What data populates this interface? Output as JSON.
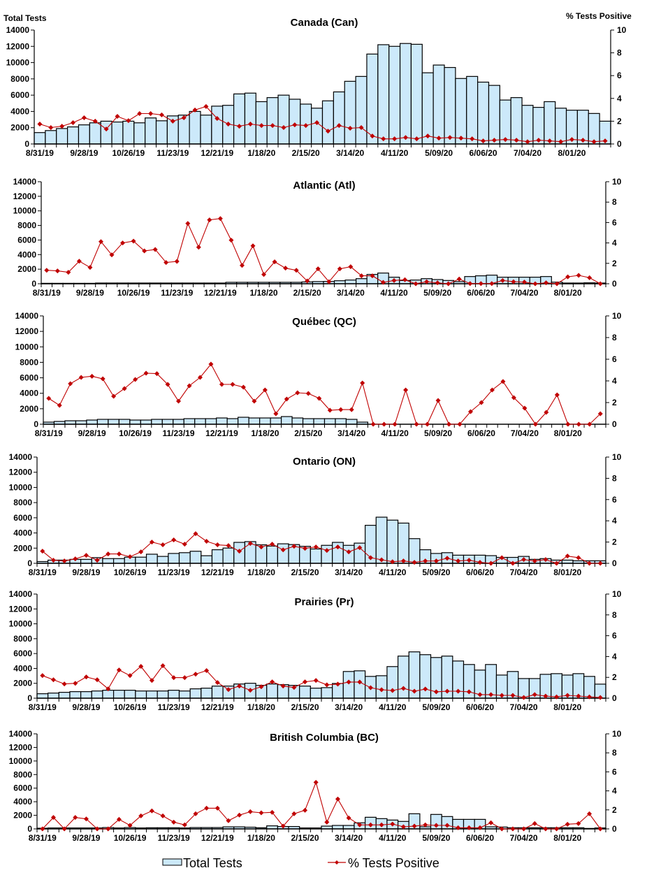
{
  "chart_data": [
    {
      "type": "bar+line",
      "title": "Canada (Can)",
      "ylabel_left": "Total Tests",
      "ylabel_right": "% Tests Positive",
      "ylim_left": [
        0,
        14000
      ],
      "ylim_right": [
        0,
        10
      ],
      "total_tests": [
        1400,
        1650,
        1900,
        2100,
        2350,
        2600,
        2800,
        2700,
        2800,
        2600,
        3200,
        2850,
        3450,
        3550,
        4000,
        3550,
        4650,
        4750,
        6150,
        6250,
        5200,
        5700,
        6000,
        5500,
        4900,
        4400,
        5300,
        6400,
        7700,
        8300,
        11050,
        12200,
        12000,
        12350,
        12250,
        8750,
        9700,
        9400,
        8050,
        8300,
        7600,
        7200,
        5400,
        5700,
        4750,
        4500,
        5200,
        4400,
        4150,
        4150,
        3750,
        2800
      ],
      "pct_positive": [
        1.75,
        1.44,
        1.56,
        1.87,
        2.3,
        2.0,
        1.31,
        2.42,
        2.05,
        2.67,
        2.67,
        2.55,
        2.0,
        2.3,
        2.98,
        3.29,
        2.24,
        1.75,
        1.56,
        1.75,
        1.62,
        1.62,
        1.44,
        1.68,
        1.62,
        1.87,
        1.13,
        1.62,
        1.38,
        1.44,
        0.7,
        0.45,
        0.45,
        0.57,
        0.45,
        0.7,
        0.51,
        0.57,
        0.51,
        0.45,
        0.27,
        0.33,
        0.39,
        0.33,
        0.2,
        0.33,
        0.27,
        0.2,
        0.39,
        0.33,
        0.2,
        0.27
      ]
    },
    {
      "type": "bar+line",
      "title": "Atlantic (Atl)",
      "ylim_left": [
        0,
        14000
      ],
      "ylim_right": [
        0,
        10
      ],
      "total_tests": [
        60,
        60,
        60,
        60,
        60,
        100,
        100,
        100,
        100,
        100,
        100,
        100,
        100,
        100,
        100,
        100,
        100,
        200,
        200,
        200,
        200,
        200,
        200,
        200,
        250,
        300,
        320,
        415,
        510,
        700,
        1280,
        1470,
        900,
        450,
        510,
        700,
        575,
        450,
        290,
        990,
        1090,
        1180,
        900,
        900,
        900,
        900,
        990,
        220,
        100,
        100,
        130,
        100
      ],
      "pct_positive": [
        1.32,
        1.26,
        1.12,
        2.21,
        1.6,
        4.13,
        2.83,
        4.0,
        4.18,
        3.22,
        3.36,
        2.08,
        2.19,
        5.91,
        3.58,
        6.26,
        6.39,
        4.27,
        1.8,
        3.72,
        0.91,
        2.15,
        1.53,
        1.32,
        0.27,
        1.46,
        0.2,
        1.46,
        1.67,
        0.78,
        0.78,
        0.14,
        0.32,
        0.39,
        0,
        0.2,
        0.09,
        0,
        0.46,
        0.02,
        0.02,
        0.02,
        0.32,
        0.2,
        0.16,
        0,
        0.09,
        0,
        0.68,
        0.82,
        0.59,
        0
      ]
    },
    {
      "type": "bar+line",
      "title": "Québec (QC)",
      "ylim_left": [
        0,
        14000
      ],
      "ylim_right": [
        0,
        10
      ],
      "total_tests": [
        270,
        360,
        450,
        450,
        540,
        630,
        630,
        630,
        540,
        540,
        630,
        630,
        630,
        720,
        720,
        720,
        810,
        720,
        900,
        810,
        810,
        810,
        990,
        810,
        720,
        720,
        720,
        720,
        630,
        270,
        0,
        0,
        0,
        0,
        0,
        0,
        0,
        0,
        0,
        0,
        0,
        0,
        0,
        0,
        0,
        0,
        0,
        0,
        0,
        0,
        0,
        0
      ],
      "pct_positive": [
        2.39,
        1.74,
        3.74,
        4.32,
        4.43,
        4.19,
        2.58,
        3.29,
        4.13,
        4.71,
        4.67,
        3.68,
        2.13,
        3.55,
        4.32,
        5.55,
        3.68,
        3.68,
        3.42,
        2.13,
        3.16,
        0.97,
        2.32,
        2.9,
        2.84,
        2.39,
        1.29,
        1.35,
        1.35,
        3.81,
        0,
        0,
        0,
        3.16,
        0,
        0,
        2.19,
        0,
        0,
        1.16,
        2.0,
        3.16,
        3.94,
        2.45,
        1.48,
        0,
        1.1,
        2.71,
        0,
        0,
        0,
        0.97
      ]
    },
    {
      "type": "bar+line",
      "title": "Ontario (ON)",
      "ylim_left": [
        0,
        14000
      ],
      "ylim_right": [
        0,
        10
      ],
      "total_tests": [
        230,
        420,
        420,
        520,
        520,
        750,
        620,
        620,
        810,
        810,
        1200,
        910,
        1300,
        1400,
        1590,
        1000,
        1790,
        2010,
        2760,
        2860,
        2440,
        2270,
        2570,
        2470,
        2240,
        1890,
        2370,
        2760,
        2370,
        2660,
        5010,
        6080,
        5690,
        5300,
        3250,
        1790,
        1300,
        1400,
        1070,
        1070,
        1070,
        1010,
        780,
        780,
        910,
        520,
        620,
        420,
        420,
        330,
        330,
        330
      ],
      "pct_positive": [
        1.14,
        0.29,
        0.22,
        0.42,
        0.75,
        0.29,
        0.88,
        0.88,
        0.62,
        1.08,
        2.0,
        1.74,
        2.2,
        1.8,
        2.79,
        2.07,
        1.74,
        1.67,
        1.14,
        1.87,
        1.54,
        1.8,
        1.27,
        1.6,
        1.41,
        1.54,
        1.21,
        1.54,
        1.08,
        1.47,
        0.53,
        0.33,
        0.15,
        0.22,
        0.09,
        0.22,
        0.22,
        0.48,
        0.22,
        0.29,
        0.09,
        0,
        0.53,
        0,
        0.35,
        0.22,
        0.35,
        0,
        0.68,
        0.53,
        0,
        0
      ]
    },
    {
      "type": "bar+line",
      "title": "Prairies (Pr)",
      "ylim_left": [
        0,
        14000
      ],
      "ylim_right": [
        0,
        10
      ],
      "total_tests": [
        600,
        690,
        790,
        880,
        880,
        970,
        1070,
        1070,
        1070,
        970,
        970,
        970,
        1070,
        970,
        1260,
        1350,
        1630,
        1630,
        1910,
        2010,
        1730,
        1910,
        1820,
        1730,
        1630,
        1350,
        1420,
        1980,
        3590,
        3680,
        2930,
        3020,
        4250,
        5660,
        6230,
        5850,
        5470,
        5660,
        5000,
        4530,
        3780,
        4530,
        3110,
        3590,
        2640,
        2640,
        3210,
        3300,
        3110,
        3300,
        2930,
        1890
      ],
      "pct_positive": [
        2.17,
        1.77,
        1.37,
        1.43,
        2.04,
        1.77,
        0.9,
        2.71,
        2.17,
        3.05,
        1.7,
        3.12,
        1.97,
        1.97,
        2.31,
        2.65,
        1.5,
        0.83,
        1.17,
        0.76,
        1.1,
        1.57,
        1.17,
        1.03,
        1.57,
        1.7,
        1.28,
        1.35,
        1.55,
        1.55,
        1.01,
        0.81,
        0.74,
        0.94,
        0.67,
        0.88,
        0.61,
        0.67,
        0.67,
        0.61,
        0.34,
        0.34,
        0.27,
        0.27,
        0.07,
        0.34,
        0.2,
        0.13,
        0.27,
        0.2,
        0.13,
        0.07
      ]
    },
    {
      "type": "bar+line",
      "title": "British Columbia (BC)",
      "ylim_left": [
        0,
        14000
      ],
      "ylim_right": [
        0,
        10
      ],
      "total_tests": [
        100,
        140,
        140,
        140,
        140,
        140,
        200,
        140,
        200,
        140,
        170,
        170,
        170,
        140,
        200,
        200,
        200,
        300,
        300,
        250,
        170,
        450,
        350,
        350,
        140,
        140,
        410,
        510,
        510,
        890,
        1710,
        1510,
        1300,
        1100,
        2230,
        310,
        2130,
        1820,
        1400,
        1400,
        1400,
        310,
        270,
        170,
        170,
        170,
        170,
        170,
        170,
        170,
        70,
        140
      ],
      "pct_positive": [
        0,
        1.2,
        0,
        1.2,
        1.05,
        0,
        0,
        1.0,
        0.37,
        1.37,
        1.89,
        1.37,
        0.71,
        0.42,
        1.59,
        2.18,
        2.18,
        0.86,
        1.45,
        1.81,
        1.69,
        1.74,
        0.29,
        1.59,
        1.96,
        4.9,
        0.71,
        3.14,
        1.15,
        0.42,
        0.42,
        0.42,
        0.51,
        0.22,
        0.29,
        0.42,
        0.37,
        0.37,
        0.12,
        0.12,
        0.12,
        0.64,
        0,
        0,
        0,
        0.56,
        0,
        0,
        0.49,
        0.56,
        1.59,
        0
      ]
    }
  ],
  "x_tick_labels": [
    "8/31/19",
    "9/28/19",
    "10/26/19",
    "11/23/19",
    "12/21/19",
    "1/18/20",
    "2/15/20",
    "3/14/20",
    "4/11/20",
    "5/09/20",
    "6/06/20",
    "7/04/20",
    "8/01/20"
  ],
  "y_left_ticks": [
    "0",
    "2000",
    "4000",
    "6000",
    "8000",
    "10000",
    "12000",
    "14000"
  ],
  "y_right_ticks": [
    "0",
    "2",
    "4",
    "6",
    "8",
    "10"
  ],
  "grid": false,
  "legend": {
    "placement": "bottom",
    "bars": "Total Tests",
    "line": "% Tests Positive"
  },
  "colors": {
    "bar_fill": "#cce9fa",
    "bar_stroke": "#000000",
    "line": "#c00000"
  }
}
